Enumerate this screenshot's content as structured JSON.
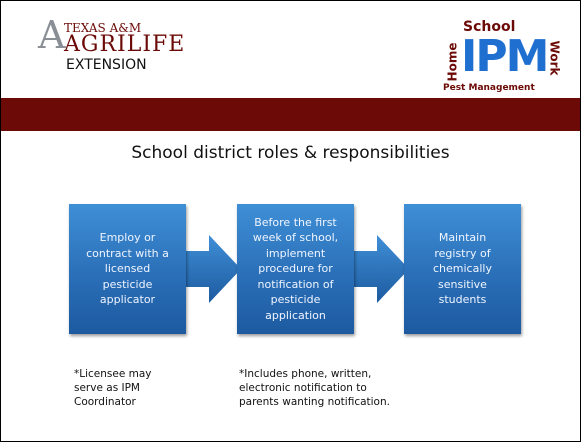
{
  "header": {
    "left_logo": {
      "line1": "TEXAS A&M",
      "line2": "AGRILIFE",
      "line3": "EXTENSION"
    },
    "right_logo": {
      "school": "School",
      "home": "Home",
      "ipm": "IPM",
      "work": "Work",
      "pest": "Pest Management"
    }
  },
  "title": "School district roles & responsibilities",
  "boxes": [
    {
      "lines": [
        "Employ or",
        "contract with a",
        "licensed",
        "pesticide",
        "applicator"
      ]
    },
    {
      "lines": [
        "Before the first",
        "week of school,",
        "implement",
        "procedure for",
        "notification of",
        "pesticide",
        "application"
      ]
    },
    {
      "lines": [
        "Maintain",
        "registry of",
        "chemically",
        "sensitive",
        "students"
      ]
    }
  ],
  "notes": [
    {
      "lines": [
        "*Licensee may",
        "serve as IPM",
        "Coordinator"
      ]
    },
    {
      "lines": [
        "*Includes phone, written,",
        "electronic notification to",
        "parents wanting notification."
      ]
    }
  ]
}
